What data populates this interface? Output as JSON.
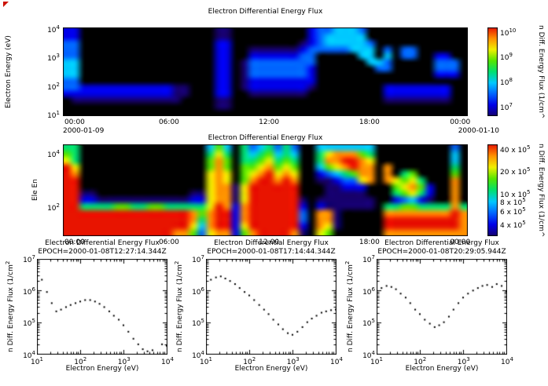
{
  "style": {
    "background": "#ffffff",
    "text_color": "#000000",
    "scatter_color": "#000000",
    "corner_mark_color": "#cc1100",
    "colormap": [
      "#000000",
      "#16006e",
      "#0000e8",
      "#0064ff",
      "#00c8ff",
      "#00e070",
      "#55e600",
      "#f0f000",
      "#ff9100",
      "#e81400"
    ]
  },
  "chart_data": [
    {
      "type": "heatmap",
      "title": "Electron Differential Energy Flux",
      "ylabel": "Electron Energy (eV)",
      "energy_range_ev": [
        10,
        10000
      ],
      "log_y": true,
      "yticks": [
        {
          "label": "10^4",
          "pos": 0.02
        },
        {
          "label": "10^3",
          "pos": 0.34
        },
        {
          "label": "10^2",
          "pos": 0.66
        },
        {
          "label": "10^1",
          "pos": 0.98
        }
      ],
      "xticks": [
        {
          "label": "00:00",
          "pos": 0.029
        },
        {
          "label": "06:00",
          "pos": 0.262
        },
        {
          "label": "12:00",
          "pos": 0.509
        },
        {
          "label": "18:00",
          "pos": 0.757
        },
        {
          "label": "00:00",
          "pos": 0.981
        }
      ],
      "date_left": "2000-01-09",
      "date_right": "2000-01-10",
      "colorbar": {
        "label": "n Diff. Energy Flux (1/cm^",
        "ticks": [
          {
            "label": "10^10",
            "pos": 0.05
          },
          {
            "label": "10^9",
            "pos": 0.33
          },
          {
            "label": "10^8",
            "pos": 0.61
          },
          {
            "label": "10^7",
            "pos": 0.89
          }
        ]
      },
      "grid_rows": [
        "220000000000000000110000000002334443000000000000",
        "220000000000000000110000000002344444000000000000",
        "330000000000000000220000000012344444300000000000",
        "330000000000000000220011111123333344403033000000",
        "330000000000000000220022222233000004404033002200",
        "440000000000000000220133333333000000443000003330",
        "440000000000000000220133333332000000033000003330",
        "440000000000000000220133333332000000000000002220",
        "330000000000000000220122222222000000000000000000",
        "332222222222211000220122222221000000002222222200",
        "222222222222211000220011111110000000002222222200",
        "011111111111110000110000000000000000001111111100",
        "000000000000000000110000000000000000000000000000",
        "000000000000000000000000000000000000000000000000"
      ]
    },
    {
      "type": "heatmap",
      "title": "Electron Differential Energy Flux",
      "ylabel": "Ele En",
      "energy_range_ev": [
        10,
        20000
      ],
      "log_y": true,
      "yticks": [
        {
          "label": "10^4",
          "pos": 0.1
        },
        {
          "label": "10^2",
          "pos": 0.68
        }
      ],
      "xticks": [
        {
          "label": "00:00",
          "pos": 0.029
        },
        {
          "label": "06:00",
          "pos": 0.262
        },
        {
          "label": "12:00",
          "pos": 0.509
        },
        {
          "label": "18:00",
          "pos": 0.757
        },
        {
          "label": "00:00",
          "pos": 0.981
        }
      ],
      "colorbar": {
        "label": "n Diff. Energy Flux (1/cm^",
        "ticks": [
          {
            "label": "40 x 10^5",
            "pos": 0.05
          },
          {
            "label": "20 x 10^5",
            "pos": 0.29
          },
          {
            "label": "10 x 10^5",
            "pos": 0.54
          },
          {
            "label": "8 x 10^5",
            "pos": 0.62
          },
          {
            "label": "6 x 10^5",
            "pos": 0.73
          },
          {
            "label": "4 x 10^5",
            "pos": 0.87
          }
        ]
      },
      "grid_rows": [
        "550000000000000004640534535300444444400000000030",
        "650000000000000005750545645400578886500000000040",
        "750000000000000006860556756500588998700000000040",
        "970000000000000006860667867600467898808000000050",
        "980000000000000007870678978700234568808056000060",
        "990000000000000007870689989800112337808767500080",
        "990000000000000007881799999900011222000678620080",
        "991100000000000117881799999900011111000567520080",
        "992211111111111227881799999910111111100234210080",
        "995555665566555557982899999920211111105566555585",
        "999999999999999868992899999930881000008888888898",
        "999999999999999858992899999930881000009999999998",
        "999999999999999748992799999920871000009999999998",
        "999999999999988637882689999810760000008888888888"
      ]
    },
    {
      "type": "scatter",
      "title": "Electron Differential Energy Flux",
      "subtitle": "EPOCH=2000-01-08T12:27:14.344Z",
      "xlabel": "Electron Energy (eV)",
      "ylabel": "n Diff. Energy Flux (1/cm^2",
      "xlim": [
        10,
        10000
      ],
      "ylim": [
        10000,
        10000000
      ],
      "xticks": [
        {
          "label": "10^1",
          "pos": 0.0
        },
        {
          "label": "10^2",
          "pos": 0.333
        },
        {
          "label": "10^3",
          "pos": 0.667
        },
        {
          "label": "10^4",
          "pos": 1.0
        }
      ],
      "yticks": [
        {
          "label": "10^7",
          "pos": 0.0
        },
        {
          "label": "10^6",
          "pos": 0.333
        },
        {
          "label": "10^5",
          "pos": 0.667
        },
        {
          "label": "10^4",
          "pos": 1.0
        }
      ],
      "points": [
        [
          10,
          2800000
        ],
        [
          13,
          2200000
        ],
        [
          17,
          900000
        ],
        [
          22,
          400000
        ],
        [
          28,
          220000
        ],
        [
          36,
          250000
        ],
        [
          47,
          300000
        ],
        [
          60,
          350000
        ],
        [
          78,
          400000
        ],
        [
          100,
          450000
        ],
        [
          130,
          500000
        ],
        [
          170,
          500000
        ],
        [
          220,
          450000
        ],
        [
          280,
          380000
        ],
        [
          360,
          300000
        ],
        [
          470,
          220000
        ],
        [
          600,
          160000
        ],
        [
          780,
          120000
        ],
        [
          1000,
          80000
        ],
        [
          1300,
          50000
        ],
        [
          1700,
          30000
        ],
        [
          2200,
          20000
        ],
        [
          2800,
          14000
        ],
        [
          3600,
          12000
        ],
        [
          4700,
          13000
        ],
        [
          7800,
          20000
        ],
        [
          10000,
          18000
        ]
      ]
    },
    {
      "type": "scatter",
      "title": "Electron Differential Energy Flux",
      "subtitle": "EPOCH=2000-01-08T17:14:44.344Z",
      "xlabel": "Electron Energy (eV)",
      "ylabel": "n Diff. Energy Flux (1/cm^2",
      "xlim": [
        10,
        10000
      ],
      "ylim": [
        10000,
        10000000
      ],
      "xticks": [
        {
          "label": "10^1",
          "pos": 0.0
        },
        {
          "label": "10^2",
          "pos": 0.333
        },
        {
          "label": "10^3",
          "pos": 0.667
        },
        {
          "label": "10^4",
          "pos": 1.0
        }
      ],
      "yticks": [
        {
          "label": "10^7",
          "pos": 0.0
        },
        {
          "label": "10^6",
          "pos": 0.333
        },
        {
          "label": "10^5",
          "pos": 0.667
        },
        {
          "label": "10^4",
          "pos": 1.0
        }
      ],
      "points": [
        [
          10,
          1800000
        ],
        [
          13,
          2200000
        ],
        [
          17,
          2600000
        ],
        [
          22,
          2800000
        ],
        [
          28,
          2400000
        ],
        [
          36,
          2000000
        ],
        [
          47,
          1600000
        ],
        [
          60,
          1200000
        ],
        [
          78,
          900000
        ],
        [
          100,
          700000
        ],
        [
          130,
          500000
        ],
        [
          170,
          350000
        ],
        [
          220,
          250000
        ],
        [
          280,
          180000
        ],
        [
          360,
          120000
        ],
        [
          470,
          85000
        ],
        [
          600,
          60000
        ],
        [
          780,
          45000
        ],
        [
          1000,
          40000
        ],
        [
          1300,
          50000
        ],
        [
          1700,
          70000
        ],
        [
          2200,
          100000
        ],
        [
          2800,
          130000
        ],
        [
          3600,
          160000
        ],
        [
          4700,
          200000
        ],
        [
          6000,
          220000
        ],
        [
          7800,
          240000
        ],
        [
          10000,
          250000
        ]
      ]
    },
    {
      "type": "scatter",
      "title": "Electron Differential Energy Flux",
      "subtitle": "EPOCH=2000-01-08T20:29:05.944Z",
      "xlabel": "Electron Energy (eV)",
      "ylabel": "n Diff. Energy Flux (1/cm^2",
      "xlim": [
        10,
        10000
      ],
      "ylim": [
        10000,
        10000000
      ],
      "xticks": [
        {
          "label": "10^1",
          "pos": 0.0
        },
        {
          "label": "10^2",
          "pos": 0.333
        },
        {
          "label": "10^3",
          "pos": 0.667
        },
        {
          "label": "10^4",
          "pos": 1.0
        }
      ],
      "yticks": [
        {
          "label": "10^7",
          "pos": 0.0
        },
        {
          "label": "10^6",
          "pos": 0.333
        },
        {
          "label": "10^5",
          "pos": 0.667
        },
        {
          "label": "10^4",
          "pos": 1.0
        }
      ],
      "points": [
        [
          10,
          900000
        ],
        [
          13,
          1200000
        ],
        [
          17,
          1400000
        ],
        [
          22,
          1300000
        ],
        [
          28,
          1100000
        ],
        [
          36,
          800000
        ],
        [
          47,
          600000
        ],
        [
          60,
          400000
        ],
        [
          78,
          250000
        ],
        [
          100,
          180000
        ],
        [
          130,
          120000
        ],
        [
          170,
          90000
        ],
        [
          220,
          70000
        ],
        [
          280,
          80000
        ],
        [
          360,
          100000
        ],
        [
          470,
          150000
        ],
        [
          600,
          250000
        ],
        [
          780,
          400000
        ],
        [
          1000,
          600000
        ],
        [
          1300,
          800000
        ],
        [
          1700,
          1000000
        ],
        [
          2200,
          1200000
        ],
        [
          2800,
          1400000
        ],
        [
          3600,
          1500000
        ],
        [
          4700,
          1300000
        ],
        [
          6000,
          1600000
        ],
        [
          7800,
          1400000
        ],
        [
          10000,
          900000
        ]
      ]
    }
  ]
}
